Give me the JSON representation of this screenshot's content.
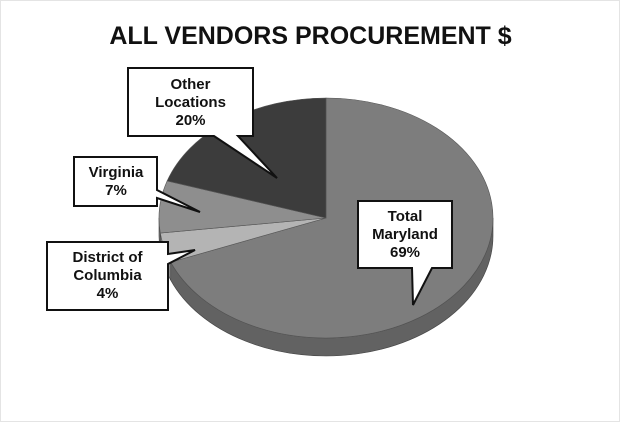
{
  "chart_data": {
    "type": "pie",
    "title": "ALL VENDORS PROCUREMENT $",
    "categories": [
      "Total Maryland",
      "District of Columbia",
      "Virginia",
      "Other Locations"
    ],
    "values": [
      69,
      4,
      7,
      20
    ],
    "value_labels": [
      "69%",
      "4%",
      "7%",
      "20%"
    ],
    "colors": [
      "#7d7d7d",
      "#b4b4b4",
      "#8e8e8e",
      "#3c3c3c"
    ]
  }
}
